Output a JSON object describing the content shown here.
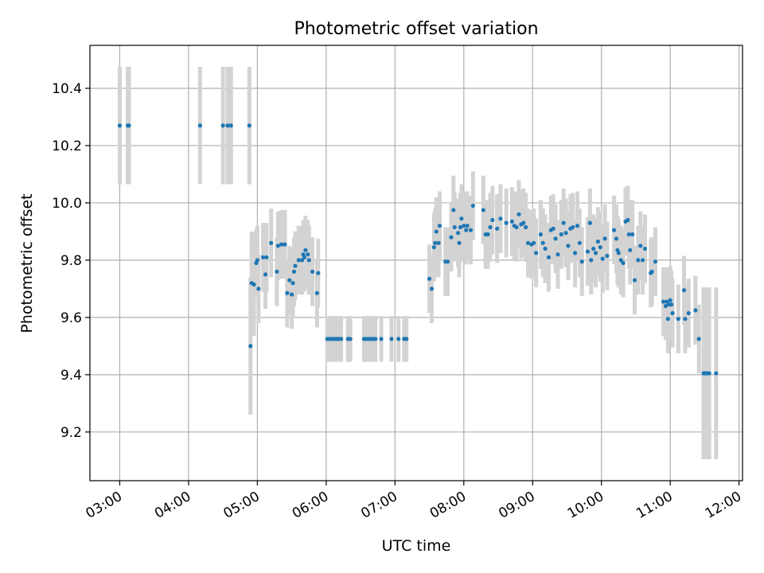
{
  "chart_data": {
    "type": "scatter",
    "title": "Photometric offset variation",
    "xlabel": "UTC time",
    "ylabel": "Photometric offset",
    "grid": true,
    "x_tick_labels": [
      "03:00",
      "04:00",
      "05:00",
      "06:00",
      "07:00",
      "08:00",
      "09:00",
      "10:00",
      "11:00",
      "12:00"
    ],
    "y_tick_labels": [
      "9.2",
      "9.4",
      "9.6",
      "9.8",
      "10.0",
      "10.2",
      "10.4"
    ],
    "xlim": [
      "02:34",
      "12:03"
    ],
    "ylim": [
      9.03,
      10.55
    ],
    "colors": {
      "points": "#1f77b4",
      "errorbars": "#d3d3d3",
      "grid": "#b0b0b0"
    },
    "points": [
      {
        "t": "03:00",
        "y": 10.27,
        "err": 0.205
      },
      {
        "t": "03:07",
        "y": 10.27,
        "err": 0.205
      },
      {
        "t": "03:08",
        "y": 10.27,
        "err": 0.205
      },
      {
        "t": "04:10",
        "y": 10.27,
        "err": 0.205
      },
      {
        "t": "04:30",
        "y": 10.27,
        "err": 0.205
      },
      {
        "t": "04:34",
        "y": 10.27,
        "err": 0.205
      },
      {
        "t": "04:37",
        "y": 10.27,
        "err": 0.205
      },
      {
        "t": "04:53",
        "y": 10.27,
        "err": 0.205
      },
      {
        "t": "04:54",
        "y": 9.5,
        "err": 0.24
      },
      {
        "t": "04:55",
        "y": 9.72,
        "err": 0.18
      },
      {
        "t": "04:57",
        "y": 9.715,
        "err": 0.18
      },
      {
        "t": "04:59",
        "y": 9.79,
        "err": 0.12
      },
      {
        "t": "05:00",
        "y": 9.8,
        "err": 0.12
      },
      {
        "t": "05:01",
        "y": 9.7,
        "err": 0.12
      },
      {
        "t": "05:05",
        "y": 9.81,
        "err": 0.12
      },
      {
        "t": "05:07",
        "y": 9.75,
        "err": 0.12
      },
      {
        "t": "05:08",
        "y": 9.81,
        "err": 0.12
      },
      {
        "t": "05:12",
        "y": 9.86,
        "err": 0.12
      },
      {
        "t": "05:17",
        "y": 9.76,
        "err": 0.12
      },
      {
        "t": "05:18",
        "y": 9.85,
        "err": 0.12
      },
      {
        "t": "05:21",
        "y": 9.855,
        "err": 0.12
      },
      {
        "t": "05:24",
        "y": 9.855,
        "err": 0.12
      },
      {
        "t": "05:26",
        "y": 9.685,
        "err": 0.12
      },
      {
        "t": "05:28",
        "y": 9.73,
        "err": 0.12
      },
      {
        "t": "05:30",
        "y": 9.68,
        "err": 0.12
      },
      {
        "t": "05:31",
        "y": 9.72,
        "err": 0.12
      },
      {
        "t": "05:32",
        "y": 9.76,
        "err": 0.12
      },
      {
        "t": "05:33",
        "y": 9.78,
        "err": 0.12
      },
      {
        "t": "05:36",
        "y": 9.8,
        "err": 0.12
      },
      {
        "t": "05:39",
        "y": 9.8,
        "err": 0.12
      },
      {
        "t": "05:40",
        "y": 9.82,
        "err": 0.12
      },
      {
        "t": "05:41",
        "y": 9.81,
        "err": 0.12
      },
      {
        "t": "05:42",
        "y": 9.835,
        "err": 0.12
      },
      {
        "t": "05:44",
        "y": 9.82,
        "err": 0.12
      },
      {
        "t": "05:45",
        "y": 9.8,
        "err": 0.12
      },
      {
        "t": "05:48",
        "y": 9.76,
        "err": 0.12
      },
      {
        "t": "05:52",
        "y": 9.685,
        "err": 0.12
      },
      {
        "t": "05:53",
        "y": 9.755,
        "err": 0.12
      },
      {
        "t": "06:01",
        "y": 9.525,
        "err": 0.08
      },
      {
        "t": "06:03",
        "y": 9.525,
        "err": 0.08
      },
      {
        "t": "06:05",
        "y": 9.525,
        "err": 0.08
      },
      {
        "t": "06:07",
        "y": 9.525,
        "err": 0.08
      },
      {
        "t": "06:09",
        "y": 9.525,
        "err": 0.08
      },
      {
        "t": "06:11",
        "y": 9.525,
        "err": 0.08
      },
      {
        "t": "06:13",
        "y": 9.525,
        "err": 0.08
      },
      {
        "t": "06:19",
        "y": 9.525,
        "err": 0.08
      },
      {
        "t": "06:21",
        "y": 9.525,
        "err": 0.08
      },
      {
        "t": "06:33",
        "y": 9.525,
        "err": 0.08
      },
      {
        "t": "06:35",
        "y": 9.525,
        "err": 0.08
      },
      {
        "t": "06:37",
        "y": 9.525,
        "err": 0.08
      },
      {
        "t": "06:39",
        "y": 9.525,
        "err": 0.08
      },
      {
        "t": "06:41",
        "y": 9.525,
        "err": 0.08
      },
      {
        "t": "06:43",
        "y": 9.525,
        "err": 0.08
      },
      {
        "t": "06:48",
        "y": 9.525,
        "err": 0.08
      },
      {
        "t": "06:57",
        "y": 9.525,
        "err": 0.08
      },
      {
        "t": "07:03",
        "y": 9.525,
        "err": 0.08
      },
      {
        "t": "07:08",
        "y": 9.525,
        "err": 0.08
      },
      {
        "t": "07:10",
        "y": 9.525,
        "err": 0.08
      },
      {
        "t": "07:30",
        "y": 9.735,
        "err": 0.12
      },
      {
        "t": "07:32",
        "y": 9.7,
        "err": 0.12
      },
      {
        "t": "07:34",
        "y": 9.845,
        "err": 0.12
      },
      {
        "t": "07:35",
        "y": 9.86,
        "err": 0.12
      },
      {
        "t": "07:36",
        "y": 9.9,
        "err": 0.12
      },
      {
        "t": "07:38",
        "y": 9.86,
        "err": 0.12
      },
      {
        "t": "07:39",
        "y": 9.92,
        "err": 0.12
      },
      {
        "t": "07:44",
        "y": 9.795,
        "err": 0.12
      },
      {
        "t": "07:46",
        "y": 9.795,
        "err": 0.12
      },
      {
        "t": "07:49",
        "y": 9.88,
        "err": 0.12
      },
      {
        "t": "07:51",
        "y": 9.975,
        "err": 0.12
      },
      {
        "t": "07:52",
        "y": 9.915,
        "err": 0.12
      },
      {
        "t": "07:55",
        "y": 9.895,
        "err": 0.12
      },
      {
        "t": "07:56",
        "y": 9.86,
        "err": 0.12
      },
      {
        "t": "07:57",
        "y": 9.915,
        "err": 0.12
      },
      {
        "t": "07:58",
        "y": 9.945,
        "err": 0.12
      },
      {
        "t": "08:00",
        "y": 9.92,
        "err": 0.12
      },
      {
        "t": "08:02",
        "y": 9.905,
        "err": 0.12
      },
      {
        "t": "08:03",
        "y": 9.92,
        "err": 0.12
      },
      {
        "t": "08:06",
        "y": 9.905,
        "err": 0.12
      },
      {
        "t": "08:08",
        "y": 9.99,
        "err": 0.12
      },
      {
        "t": "08:17",
        "y": 9.975,
        "err": 0.12
      },
      {
        "t": "08:19",
        "y": 9.89,
        "err": 0.12
      },
      {
        "t": "08:21",
        "y": 9.89,
        "err": 0.12
      },
      {
        "t": "08:23",
        "y": 9.915,
        "err": 0.12
      },
      {
        "t": "08:25",
        "y": 9.94,
        "err": 0.12
      },
      {
        "t": "08:29",
        "y": 9.91,
        "err": 0.12
      },
      {
        "t": "08:32",
        "y": 9.945,
        "err": 0.12
      },
      {
        "t": "08:37",
        "y": 9.93,
        "err": 0.12
      },
      {
        "t": "08:42",
        "y": 9.935,
        "err": 0.12
      },
      {
        "t": "08:44",
        "y": 9.92,
        "err": 0.12
      },
      {
        "t": "08:46",
        "y": 9.915,
        "err": 0.12
      },
      {
        "t": "08:48",
        "y": 9.96,
        "err": 0.12
      },
      {
        "t": "08:50",
        "y": 9.925,
        "err": 0.12
      },
      {
        "t": "08:52",
        "y": 9.93,
        "err": 0.12
      },
      {
        "t": "08:54",
        "y": 9.915,
        "err": 0.12
      },
      {
        "t": "08:56",
        "y": 9.86,
        "err": 0.12
      },
      {
        "t": "08:59",
        "y": 9.855,
        "err": 0.12
      },
      {
        "t": "09:01",
        "y": 9.86,
        "err": 0.12
      },
      {
        "t": "09:03",
        "y": 9.825,
        "err": 0.12
      },
      {
        "t": "09:07",
        "y": 9.89,
        "err": 0.12
      },
      {
        "t": "09:09",
        "y": 9.86,
        "err": 0.12
      },
      {
        "t": "09:11",
        "y": 9.84,
        "err": 0.12
      },
      {
        "t": "09:14",
        "y": 9.81,
        "err": 0.12
      },
      {
        "t": "09:16",
        "y": 9.905,
        "err": 0.12
      },
      {
        "t": "09:18",
        "y": 9.91,
        "err": 0.12
      },
      {
        "t": "09:20",
        "y": 9.875,
        "err": 0.12
      },
      {
        "t": "09:22",
        "y": 9.82,
        "err": 0.12
      },
      {
        "t": "09:25",
        "y": 9.89,
        "err": 0.12
      },
      {
        "t": "09:27",
        "y": 9.93,
        "err": 0.12
      },
      {
        "t": "09:29",
        "y": 9.895,
        "err": 0.12
      },
      {
        "t": "09:31",
        "y": 9.85,
        "err": 0.12
      },
      {
        "t": "09:33",
        "y": 9.91,
        "err": 0.12
      },
      {
        "t": "09:35",
        "y": 9.915,
        "err": 0.12
      },
      {
        "t": "09:37",
        "y": 9.825,
        "err": 0.12
      },
      {
        "t": "09:39",
        "y": 9.92,
        "err": 0.12
      },
      {
        "t": "09:41",
        "y": 9.86,
        "err": 0.12
      },
      {
        "t": "09:43",
        "y": 9.795,
        "err": 0.12
      },
      {
        "t": "09:48",
        "y": 9.83,
        "err": 0.12
      },
      {
        "t": "09:50",
        "y": 9.93,
        "err": 0.12
      },
      {
        "t": "09:51",
        "y": 9.8,
        "err": 0.12
      },
      {
        "t": "09:53",
        "y": 9.84,
        "err": 0.12
      },
      {
        "t": "09:55",
        "y": 9.825,
        "err": 0.12
      },
      {
        "t": "09:57",
        "y": 9.865,
        "err": 0.12
      },
      {
        "t": "09:59",
        "y": 9.845,
        "err": 0.12
      },
      {
        "t": "10:01",
        "y": 9.805,
        "err": 0.12
      },
      {
        "t": "10:03",
        "y": 9.875,
        "err": 0.12
      },
      {
        "t": "10:05",
        "y": 9.815,
        "err": 0.12
      },
      {
        "t": "10:11",
        "y": 9.905,
        "err": 0.12
      },
      {
        "t": "10:13",
        "y": 9.875,
        "err": 0.12
      },
      {
        "t": "10:14",
        "y": 9.835,
        "err": 0.12
      },
      {
        "t": "10:15",
        "y": 9.825,
        "err": 0.12
      },
      {
        "t": "10:17",
        "y": 9.8,
        "err": 0.12
      },
      {
        "t": "10:19",
        "y": 9.79,
        "err": 0.12
      },
      {
        "t": "10:21",
        "y": 9.935,
        "err": 0.12
      },
      {
        "t": "10:23",
        "y": 9.94,
        "err": 0.12
      },
      {
        "t": "10:24",
        "y": 9.89,
        "err": 0.12
      },
      {
        "t": "10:25",
        "y": 9.835,
        "err": 0.12
      },
      {
        "t": "10:27",
        "y": 9.89,
        "err": 0.12
      },
      {
        "t": "10:29",
        "y": 9.73,
        "err": 0.12
      },
      {
        "t": "10:32",
        "y": 9.8,
        "err": 0.12
      },
      {
        "t": "10:34",
        "y": 9.85,
        "err": 0.12
      },
      {
        "t": "10:36",
        "y": 9.8,
        "err": 0.12
      },
      {
        "t": "10:38",
        "y": 9.84,
        "err": 0.12
      },
      {
        "t": "10:43",
        "y": 9.755,
        "err": 0.12
      },
      {
        "t": "10:44",
        "y": 9.76,
        "err": 0.12
      },
      {
        "t": "10:47",
        "y": 9.795,
        "err": 0.12
      },
      {
        "t": "10:54",
        "y": 9.655,
        "err": 0.12
      },
      {
        "t": "10:56",
        "y": 9.64,
        "err": 0.12
      },
      {
        "t": "10:57",
        "y": 9.655,
        "err": 0.12
      },
      {
        "t": "10:58",
        "y": 9.595,
        "err": 0.12
      },
      {
        "t": "10:59",
        "y": 9.645,
        "err": 0.12
      },
      {
        "t": "11:00",
        "y": 9.66,
        "err": 0.12
      },
      {
        "t": "11:01",
        "y": 9.645,
        "err": 0.12
      },
      {
        "t": "11:02",
        "y": 9.615,
        "err": 0.12
      },
      {
        "t": "11:07",
        "y": 9.595,
        "err": 0.12
      },
      {
        "t": "11:12",
        "y": 9.695,
        "err": 0.12
      },
      {
        "t": "11:13",
        "y": 9.595,
        "err": 0.12
      },
      {
        "t": "11:16",
        "y": 9.615,
        "err": 0.12
      },
      {
        "t": "11:22",
        "y": 9.625,
        "err": 0.12
      },
      {
        "t": "11:25",
        "y": 9.525,
        "err": 0.12
      },
      {
        "t": "11:29",
        "y": 9.405,
        "err": 0.3
      },
      {
        "t": "11:30",
        "y": 9.405,
        "err": 0.3
      },
      {
        "t": "11:31",
        "y": 9.405,
        "err": 0.3
      },
      {
        "t": "11:32",
        "y": 9.405,
        "err": 0.3
      },
      {
        "t": "11:33",
        "y": 9.405,
        "err": 0.3
      },
      {
        "t": "11:34",
        "y": 9.405,
        "err": 0.3
      },
      {
        "t": "11:40",
        "y": 9.405,
        "err": 0.3
      }
    ]
  }
}
